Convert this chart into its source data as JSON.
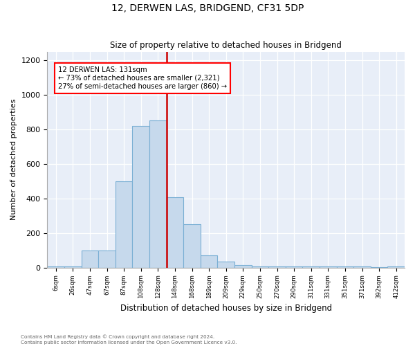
{
  "title": "12, DERWEN LAS, BRIDGEND, CF31 5DP",
  "subtitle": "Size of property relative to detached houses in Bridgend",
  "xlabel": "Distribution of detached houses by size in Bridgend",
  "ylabel": "Number of detached properties",
  "bin_labels": [
    "6sqm",
    "26sqm",
    "47sqm",
    "67sqm",
    "87sqm",
    "108sqm",
    "128sqm",
    "148sqm",
    "168sqm",
    "189sqm",
    "209sqm",
    "229sqm",
    "250sqm",
    "270sqm",
    "290sqm",
    "311sqm",
    "331sqm",
    "351sqm",
    "371sqm",
    "392sqm",
    "412sqm"
  ],
  "bar_heights": [
    5,
    5,
    100,
    100,
    500,
    820,
    850,
    405,
    250,
    70,
    35,
    15,
    8,
    8,
    5,
    5,
    5,
    5,
    5,
    3,
    5
  ],
  "bar_color": "#c6d9ec",
  "bar_edgecolor": "#7aafd4",
  "vline_index": 6.5,
  "vline_color": "#cc0000",
  "annotation_line1": "12 DERWEN LAS: 131sqm",
  "annotation_line2": "← 73% of detached houses are smaller (2,321)",
  "annotation_line3": "27% of semi-detached houses are larger (860) →",
  "ylim": [
    0,
    1250
  ],
  "yticks": [
    0,
    200,
    400,
    600,
    800,
    1000,
    1200
  ],
  "footer1": "Contains HM Land Registry data © Crown copyright and database right 2024.",
  "footer2": "Contains public sector information licensed under the Open Government Licence v3.0.",
  "bg_color": "#e8eef8",
  "fig_color": "#ffffff"
}
